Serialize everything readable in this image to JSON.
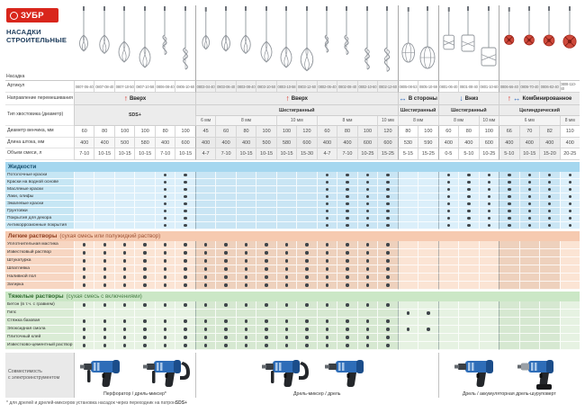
{
  "brand": {
    "logo_text": "ЗУБР",
    "title_lines": [
      "НАСАДКИ",
      "СТРОИТЕЛЬНЫЕ"
    ]
  },
  "colors": {
    "red": "#d9261c",
    "blue": "#2f6bbf",
    "title": "#1b3a5a",
    "drill_blue": "#2e6db8",
    "drill_dark": "#1b4d8a",
    "grip": "#24272b"
  },
  "row_labels": {
    "attachment": "Насадка",
    "article": "Артикул",
    "direction": "Направление перемешивания",
    "shank": "Тип хвостовика (диаметр)",
    "diameter": "Диаметр венчика, мм",
    "length": "Длина штока, мм",
    "volume": "Объем смеси, л"
  },
  "direction_groups": [
    {
      "label": "Вверх",
      "arrows": [
        "up"
      ],
      "span": 6
    },
    {
      "label": "Вверх",
      "arrows": [
        "up"
      ],
      "span": 10
    },
    {
      "label": "В стороны",
      "arrows": [
        "sides"
      ],
      "span": 2
    },
    {
      "label": "Вниз",
      "arrows": [
        "down"
      ],
      "span": 3
    },
    {
      "label": "Комбинированное",
      "arrows": [
        "up",
        "sides"
      ],
      "span": 4
    }
  ],
  "shank_groups": [
    {
      "label": "SDS+",
      "span": 6,
      "two_rows": true
    },
    {
      "label": "Шестигранный",
      "span": 10
    },
    {
      "label": "Шестигранный",
      "span": 2
    },
    {
      "label": "Шестигранный",
      "span": 3
    },
    {
      "label": "Цилиндрический",
      "span": 4
    }
  ],
  "size_groups": [
    {
      "label": "6 мм",
      "span": 1
    },
    {
      "label": "8 мм",
      "span": 3
    },
    {
      "label": "10 мм",
      "span": 2
    },
    {
      "label": "8 мм",
      "span": 3
    },
    {
      "label": "10 мм",
      "span": 1
    },
    {
      "label": "8 мм",
      "span": 2
    },
    {
      "label": "8 мм",
      "span": 2
    },
    {
      "label": "10 мм",
      "span": 1
    },
    {
      "label": "6 мм",
      "span": 3
    },
    {
      "label": "8 мм",
      "span": 1
    }
  ],
  "columns": [
    {
      "article": "0807-06-40",
      "head": "beater",
      "diameter_mm": 60,
      "length_mm": 400,
      "volume_l": "7-10"
    },
    {
      "article": "0807-08-40",
      "head": "beater",
      "diameter_mm": 80,
      "length_mm": 400,
      "volume_l": "10-15"
    },
    {
      "article": "0807-10-50",
      "head": "beater",
      "diameter_mm": 100,
      "length_mm": 500,
      "volume_l": "10-15"
    },
    {
      "article": "0807-10-58",
      "head": "beater",
      "diameter_mm": 100,
      "length_mm": 580,
      "volume_l": "10-15"
    },
    {
      "article": "0806-08-40",
      "head": "spiral",
      "diameter_mm": 80,
      "length_mm": 400,
      "volume_l": "7-10"
    },
    {
      "article": "0806-10-60",
      "head": "spiral",
      "diameter_mm": 100,
      "length_mm": 600,
      "volume_l": "10-15"
    },
    {
      "article": "0803-04-40",
      "head": "beater",
      "diameter_mm": 45,
      "length_mm": 400,
      "volume_l": "4-7"
    },
    {
      "article": "0803-06-40",
      "head": "beater",
      "diameter_mm": 60,
      "length_mm": 400,
      "volume_l": "7-10"
    },
    {
      "article": "0803-08-40",
      "head": "beater",
      "diameter_mm": 80,
      "length_mm": 400,
      "volume_l": "10-15"
    },
    {
      "article": "0803-10-50",
      "head": "beater",
      "diameter_mm": 100,
      "length_mm": 500,
      "volume_l": "10-15"
    },
    {
      "article": "0803-10-58",
      "head": "beater",
      "diameter_mm": 100,
      "length_mm": 580,
      "volume_l": "10-15"
    },
    {
      "article": "0803-12-60",
      "head": "beater",
      "diameter_mm": 120,
      "length_mm": 600,
      "volume_l": "15-30"
    },
    {
      "article": "0802-06-40",
      "head": "spiral",
      "diameter_mm": 60,
      "length_mm": 400,
      "volume_l": "4-7"
    },
    {
      "article": "0802-08-40",
      "head": "spiral",
      "diameter_mm": 80,
      "length_mm": 400,
      "volume_l": "7-10"
    },
    {
      "article": "0802-10-60",
      "head": "spiral",
      "diameter_mm": 100,
      "length_mm": 600,
      "volume_l": "10-25"
    },
    {
      "article": "0802-12-60",
      "head": "spiral",
      "diameter_mm": 120,
      "length_mm": 600,
      "volume_l": "15-25"
    },
    {
      "article": "0805-08-53",
      "head": "cage",
      "diameter_mm": 80,
      "length_mm": 530,
      "volume_l": "5-15"
    },
    {
      "article": "0805-10-59",
      "head": "cage",
      "diameter_mm": 100,
      "length_mm": 590,
      "volume_l": "15-25"
    },
    {
      "article": "0801-06-40",
      "head": "paddle",
      "diameter_mm": 60,
      "length_mm": 400,
      "volume_l": "0-5"
    },
    {
      "article": "0801-08-40",
      "head": "paddle",
      "diameter_mm": 80,
      "length_mm": 400,
      "volume_l": "5-10"
    },
    {
      "article": "0801-10-60",
      "head": "paddle",
      "diameter_mm": 100,
      "length_mm": 600,
      "volume_l": "10-25"
    },
    {
      "article": "0806-66-40",
      "head": "turbo",
      "diameter_mm": 66,
      "length_mm": 400,
      "volume_l": "5-10"
    },
    {
      "article": "0806-70-40",
      "head": "turbo",
      "diameter_mm": 70,
      "length_mm": 400,
      "volume_l": "10-15"
    },
    {
      "article": "0806-82-40",
      "head": "turbo",
      "diameter_mm": 82,
      "length_mm": 400,
      "volume_l": "15-20"
    },
    {
      "article": "0808-110-40",
      "head": "turbo",
      "diameter_mm": 110,
      "length_mm": 400,
      "volume_l": "20-25"
    }
  ],
  "sections": [
    {
      "id": "liq",
      "title": "Жидкости",
      "subtitle": "",
      "rows": [
        {
          "label": "Потолочные краски",
          "dots": [
            5,
            6,
            13,
            14,
            15,
            16,
            19,
            20,
            21,
            22,
            23,
            24,
            25
          ]
        },
        {
          "label": "Краски на водной основе",
          "dots": [
            5,
            6,
            13,
            14,
            15,
            16,
            19,
            20,
            21,
            22,
            23,
            24,
            25
          ]
        },
        {
          "label": "Масляные краски",
          "dots": [
            5,
            6,
            13,
            14,
            15,
            16,
            19,
            20,
            21,
            22,
            23,
            24,
            25
          ]
        },
        {
          "label": "Лаки, олифы",
          "dots": [
            5,
            6,
            13,
            14,
            15,
            16,
            19,
            20,
            21,
            22,
            23,
            24,
            25
          ]
        },
        {
          "label": "Эмалевые краски",
          "dots": [
            5,
            6,
            13,
            14,
            15,
            16,
            19,
            20,
            21,
            22,
            23,
            24,
            25
          ]
        },
        {
          "label": "Грунтовки",
          "dots": [
            5,
            6,
            13,
            14,
            15,
            16,
            19,
            20,
            21,
            22,
            23,
            24,
            25
          ]
        },
        {
          "label": "Покрытия для декора",
          "dots": [
            5,
            6,
            13,
            14,
            15,
            16,
            19,
            20,
            21,
            22,
            23,
            24,
            25
          ]
        },
        {
          "label": "Антикоррозионные покрытия",
          "dots": [
            5,
            6,
            13,
            14,
            15,
            16,
            19,
            20,
            21,
            22,
            23,
            24,
            25
          ]
        }
      ]
    },
    {
      "id": "light",
      "title": "Легкие растворы",
      "subtitle": "(сухая смесь или полужидкий раствор)",
      "rows": [
        {
          "label": "Уплотнительная мастика",
          "dots": [
            1,
            2,
            3,
            4,
            5,
            6,
            7,
            8,
            9,
            10,
            11,
            12,
            13,
            14,
            15,
            16
          ]
        },
        {
          "label": "Известковый раствор",
          "dots": [
            1,
            2,
            3,
            4,
            5,
            6,
            7,
            8,
            9,
            10,
            11,
            12,
            13,
            14,
            15,
            16
          ]
        },
        {
          "label": "Штукатурка",
          "dots": [
            1,
            2,
            3,
            4,
            5,
            6,
            7,
            8,
            9,
            10,
            11,
            12,
            13,
            14,
            15,
            16
          ]
        },
        {
          "label": "Шпатлевка",
          "dots": [
            1,
            2,
            3,
            4,
            5,
            6,
            7,
            8,
            9,
            10,
            11,
            12,
            13,
            14,
            15,
            16
          ]
        },
        {
          "label": "Наливной пол",
          "dots": [
            1,
            2,
            3,
            4,
            5,
            6,
            7,
            8,
            9,
            10,
            11,
            12,
            13,
            14,
            15,
            16
          ]
        },
        {
          "label": "Затирка",
          "dots": [
            1,
            2,
            3,
            4,
            5,
            6,
            7,
            8,
            9,
            10,
            11,
            12,
            13,
            14,
            15,
            16
          ]
        }
      ]
    },
    {
      "id": "heavy",
      "title": "Тяжелые растворы",
      "subtitle": "(сухая смесь с включениями)",
      "rows": [
        {
          "label": "Бетон (в т.ч. с гравием)",
          "dots": [
            1,
            2,
            3,
            4,
            5,
            6,
            7,
            8,
            9,
            10,
            11,
            12,
            13,
            14,
            15,
            16
          ]
        },
        {
          "label": "Гипс",
          "dots": [
            17,
            18
          ]
        },
        {
          "label": "Стяжка базовая",
          "dots": [
            1,
            2,
            3,
            4,
            5,
            6,
            7,
            8,
            9,
            10,
            11,
            12,
            13,
            14,
            15,
            16
          ]
        },
        {
          "label": "Эпоксидная смола",
          "dots": [
            1,
            2,
            3,
            4,
            5,
            6,
            7,
            8,
            9,
            10,
            11,
            12,
            13,
            14,
            15,
            16,
            17,
            18
          ]
        },
        {
          "label": "Плиточный клей",
          "dots": [
            1,
            2,
            3,
            4,
            5,
            6,
            7,
            8,
            9,
            10,
            11,
            12,
            13,
            14,
            15,
            16
          ]
        },
        {
          "label": "Известково-цементный раствор",
          "dots": [
            1,
            2,
            3,
            4,
            5,
            6,
            7,
            8,
            9,
            10,
            11,
            12,
            13,
            14,
            15,
            16
          ]
        }
      ]
    }
  ],
  "compatibility": {
    "label": "Совместимость\nс электроинструментом",
    "groups": [
      {
        "caption": "Перфоратор / дрель-миксер*",
        "tools": [
          "rotary-hammer",
          "drill-mixer"
        ],
        "span": 6
      },
      {
        "caption": "Дрель-миксер / дрель",
        "tools": [
          "drill-mixer",
          "drill"
        ],
        "span": 12
      },
      {
        "caption": "Дрель / аккумуляторная дрель-шуруповерт",
        "tools": [
          "drill",
          "cordless-screwdriver"
        ],
        "span": 7
      }
    ]
  },
  "footnote": "* для дрелей и дрелей-миксеров установка насадок через переходник на патрон SDS+"
}
